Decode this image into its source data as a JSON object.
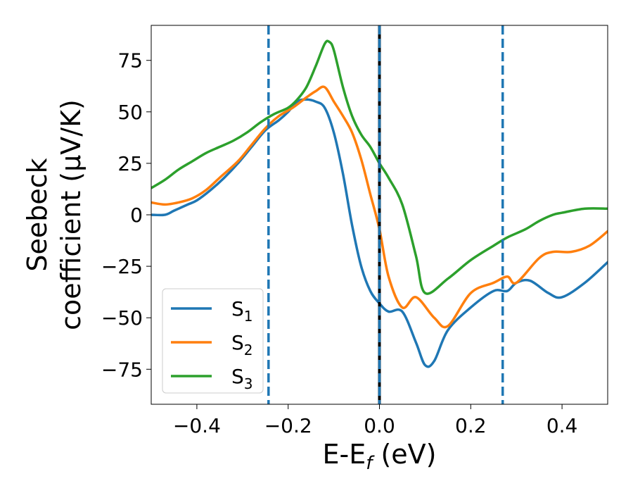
{
  "chart_data": {
    "type": "line",
    "xlabel": "E-E_f (eV)",
    "xlabel_parts": {
      "main": "E-E",
      "sub": "f",
      "tail": " (eV)"
    },
    "ylabel_line1": "Seebeck",
    "ylabel_line2": "coefficient  (μV/K)",
    "xlim": [
      -0.5,
      0.5
    ],
    "ylim": [
      -92,
      92
    ],
    "xticks": [
      -0.4,
      -0.2,
      0.0,
      0.2,
      0.4
    ],
    "xtick_labels": [
      "−0.4",
      "−0.2",
      "0.0",
      "0.2",
      "0.4"
    ],
    "yticks": [
      75,
      50,
      25,
      0,
      -25,
      -50,
      -75
    ],
    "ytick_labels": [
      "75",
      "50",
      "25",
      "0",
      "−25",
      "−50",
      "−75"
    ],
    "grid": false,
    "legend_position": "lower-left",
    "vlines": [
      {
        "x": -0.243,
        "style": "dashed",
        "color": "#1f77b4"
      },
      {
        "x": 0.0,
        "style": "solid",
        "color": "#000000"
      },
      {
        "x": 0.0,
        "style": "dashed",
        "color": "#1f77b4"
      },
      {
        "x": 0.27,
        "style": "dashed",
        "color": "#1f77b4"
      }
    ],
    "series": [
      {
        "name": "S1",
        "legend_main": "S",
        "legend_sub": "1",
        "color": "#1f77b4",
        "x": [
          -0.5,
          -0.47,
          -0.45,
          -0.42,
          -0.4,
          -0.37,
          -0.34,
          -0.31,
          -0.28,
          -0.25,
          -0.22,
          -0.2,
          -0.18,
          -0.16,
          -0.14,
          -0.12,
          -0.1,
          -0.08,
          -0.06,
          -0.04,
          -0.02,
          0.0,
          0.02,
          0.05,
          0.08,
          0.1,
          0.12,
          0.15,
          0.2,
          0.25,
          0.28,
          0.3,
          0.33,
          0.37,
          0.4,
          0.45,
          0.5
        ],
        "y": [
          0,
          0,
          2,
          5,
          7,
          12,
          18,
          25,
          33,
          41,
          46,
          50,
          55,
          56,
          55,
          52,
          40,
          20,
          -5,
          -25,
          -37,
          -43,
          -47,
          -47,
          -62,
          -73,
          -71,
          -56,
          -45,
          -37,
          -37,
          -33,
          -32,
          -38,
          -40,
          -33,
          -23
        ]
      },
      {
        "name": "S2",
        "legend_main": "S",
        "legend_sub": "2",
        "color": "#ff7f0e",
        "x": [
          -0.5,
          -0.47,
          -0.44,
          -0.41,
          -0.38,
          -0.35,
          -0.31,
          -0.28,
          -0.25,
          -0.22,
          -0.19,
          -0.16,
          -0.14,
          -0.12,
          -0.1,
          -0.08,
          -0.06,
          -0.04,
          -0.02,
          0.0,
          0.02,
          0.05,
          0.08,
          0.12,
          0.15,
          0.2,
          0.25,
          0.28,
          0.3,
          0.35,
          0.38,
          0.42,
          0.46,
          0.5
        ],
        "y": [
          6,
          5,
          6,
          8,
          12,
          18,
          26,
          34,
          42,
          48,
          52,
          57,
          60,
          62,
          55,
          48,
          40,
          27,
          10,
          -7,
          -30,
          -45,
          -40,
          -50,
          -54,
          -38,
          -33,
          -30,
          -33,
          -21,
          -18,
          -18,
          -15,
          -8
        ]
      },
      {
        "name": "S3",
        "legend_main": "S",
        "legend_sub": "3",
        "color": "#2ca02c",
        "x": [
          -0.5,
          -0.47,
          -0.44,
          -0.41,
          -0.38,
          -0.35,
          -0.32,
          -0.29,
          -0.26,
          -0.23,
          -0.2,
          -0.18,
          -0.16,
          -0.14,
          -0.12,
          -0.11,
          -0.1,
          -0.08,
          -0.06,
          -0.04,
          -0.02,
          0.0,
          0.02,
          0.05,
          0.08,
          0.1,
          0.15,
          0.2,
          0.25,
          0.28,
          0.32,
          0.35,
          0.38,
          0.4,
          0.45,
          0.5
        ],
        "y": [
          13,
          17,
          22,
          26,
          30,
          33,
          36,
          40,
          45,
          49,
          52,
          56,
          62,
          72,
          83,
          84,
          80,
          62,
          48,
          39,
          33,
          25,
          18,
          5,
          -20,
          -38,
          -31,
          -22,
          -15,
          -11,
          -7,
          -3,
          0,
          1,
          3,
          3
        ]
      }
    ]
  }
}
